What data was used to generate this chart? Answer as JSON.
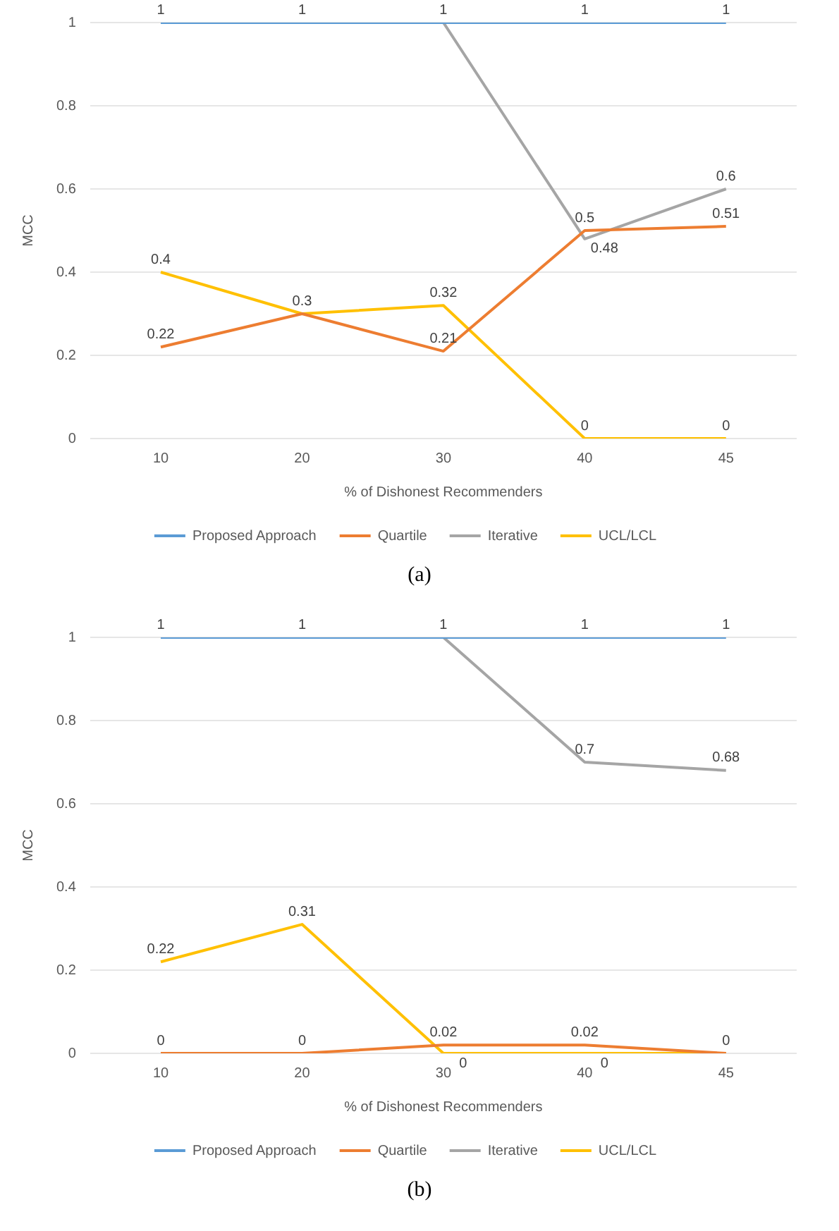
{
  "chart_data": [
    {
      "type": "line",
      "xlabel": "% of Dishonest Recommenders",
      "ylabel": "MCC",
      "categories": [
        "10",
        "20",
        "30",
        "40",
        "45"
      ],
      "series": [
        {
          "name": "Proposed Approach",
          "color": "#5b9bd5",
          "values": [
            1,
            1,
            1,
            1,
            1
          ],
          "value_labels": [
            null,
            null,
            null,
            "1",
            "1"
          ]
        },
        {
          "name": "Quartile",
          "color": "#ed7d31",
          "values": [
            0.22,
            0.3,
            0.21,
            0.5,
            0.51
          ],
          "value_labels": [
            "0.22",
            "0.3",
            "0.21",
            "0.5",
            "0.51"
          ]
        },
        {
          "name": "Iterative",
          "color": "#a5a5a5",
          "values": [
            1,
            1,
            1,
            0.48,
            0.6
          ],
          "value_labels": [
            "1",
            "1",
            "1",
            "0.48",
            "0.6"
          ]
        },
        {
          "name": "UCL/LCL",
          "color": "#ffc000",
          "values": [
            0.4,
            0.3,
            0.32,
            0,
            0
          ],
          "value_labels": [
            "0.4",
            null,
            "0.32",
            "0",
            "0"
          ]
        }
      ],
      "ylim": [
        0,
        1
      ],
      "yticks": [
        0,
        0.2,
        0.4,
        0.6,
        0.8,
        1
      ],
      "grid": "y",
      "legend": "bottom",
      "marker": "none",
      "line_style": "solid",
      "annotations": [
        "(a)"
      ]
    },
    {
      "type": "line",
      "xlabel": "% of Dishonest Recommenders",
      "ylabel": "MCC",
      "categories": [
        "10",
        "20",
        "30",
        "40",
        "45"
      ],
      "series": [
        {
          "name": "Proposed Approach",
          "color": "#5b9bd5",
          "values": [
            1,
            1,
            1,
            1,
            1
          ],
          "value_labels": [
            null,
            null,
            null,
            "1",
            "1"
          ]
        },
        {
          "name": "Quartile",
          "color": "#ed7d31",
          "values": [
            0,
            0,
            0.02,
            0.02,
            0
          ],
          "value_labels": [
            "0",
            "0",
            "0.02",
            "0.02",
            "0"
          ]
        },
        {
          "name": "Iterative",
          "color": "#a5a5a5",
          "values": [
            1,
            1,
            1,
            0.7,
            0.68
          ],
          "value_labels": [
            "1",
            "1",
            "1",
            "0.7",
            "0.68"
          ]
        },
        {
          "name": "UCL/LCL",
          "color": "#ffc000",
          "values": [
            0.22,
            0.31,
            0,
            0,
            0
          ],
          "value_labels": [
            "0.22",
            "0.31",
            "0",
            "0",
            null
          ]
        }
      ],
      "ylim": [
        0,
        1
      ],
      "yticks": [
        0,
        0.2,
        0.4,
        0.6,
        0.8,
        1
      ],
      "grid": "y",
      "legend": "bottom",
      "marker": "none",
      "line_style": "solid",
      "annotations": [
        "(b)"
      ]
    }
  ]
}
